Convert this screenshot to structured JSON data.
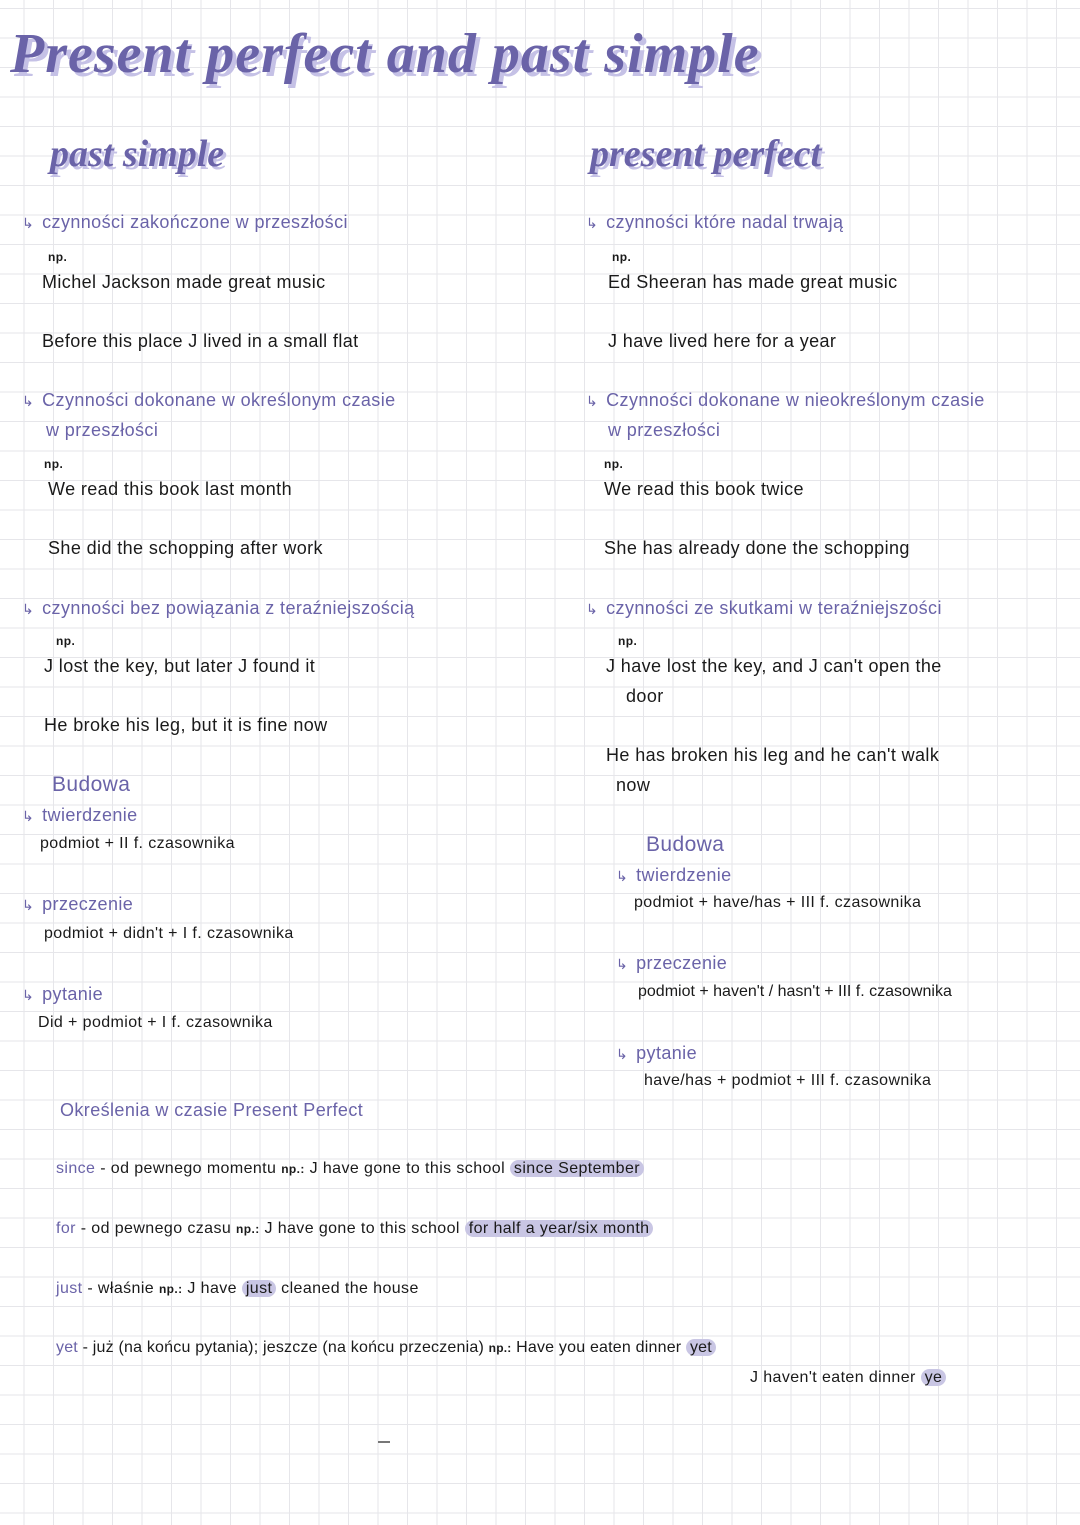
{
  "title": "Present perfect and past simple",
  "colors": {
    "accent": "#6a63a8",
    "shadow": "#c5c1e6",
    "highlight": "#c9c6e4"
  },
  "past_simple": {
    "heading": "past simple",
    "uses": [
      {
        "label": "czynności zakończone w przeszłości",
        "np": "np.",
        "examples": [
          "Michel Jackson made great music",
          "Before this place J lived in a small flat"
        ]
      },
      {
        "label": "Czynności dokonane w określonym czasie",
        "label2": "w przeszłości",
        "np": "np.",
        "examples": [
          "We read this book last month",
          "She did the schopping after work"
        ]
      },
      {
        "label": "czynności bez powiązania z teraźniejszością",
        "np": "np.",
        "examples": [
          "J lost the key, but later J found it",
          "He broke his leg, but it is fine now"
        ]
      }
    ],
    "budowa": {
      "heading": "Budowa",
      "twierdzenie": {
        "label": "twierdzenie",
        "formula": "podmiot + II f. czasownika"
      },
      "przeczenie": {
        "label": "przeczenie",
        "formula": "podmiot + didn't + I f. czasownika"
      },
      "pytanie": {
        "label": "pytanie",
        "formula": "Did + podmiot + I f. czasownika"
      }
    }
  },
  "present_perfect": {
    "heading": "present perfect",
    "uses": [
      {
        "label": "czynności które nadal trwają",
        "np": "np.",
        "examples": [
          "Ed Sheeran has made great music",
          "J have lived here for a year"
        ]
      },
      {
        "label": "Czynności dokonane w nieokreślonym czasie",
        "label2": "w przeszłości",
        "np": "np.",
        "examples": [
          "We read this book twice",
          "She has already done the schopping"
        ]
      },
      {
        "label": "czynności ze skutkami w teraźniejszości",
        "np": "np.",
        "examples": [
          "J have lost the key, and J can't open the",
          "door",
          "He has broken his leg and he can't walk",
          "now"
        ]
      }
    ],
    "budowa": {
      "heading": "Budowa",
      "twierdzenie": {
        "label": "twierdzenie",
        "formula": "podmiot + have/has + III f. czasownika"
      },
      "przeczenie": {
        "label": "przeczenie",
        "formula": "podmiot + haven't / hasn't + III f. czasownika"
      },
      "pytanie": {
        "label": "pytanie",
        "formula": "have/has + podmiot + III f. czasownika"
      }
    }
  },
  "expressions": {
    "heading": "Określenia w czasie Present Perfect",
    "items": [
      {
        "word": "since",
        "meaning": "- od pewnego momentu",
        "np": "np.:",
        "example": "J have gone to this school",
        "highlight": "since September",
        "after": ""
      },
      {
        "word": "for",
        "meaning": "- od pewnego czasu",
        "np": "np.:",
        "example": "J have gone to this school",
        "highlight": "for half a year/six month",
        "after": ""
      },
      {
        "word": "just",
        "meaning": "- właśnie",
        "np": "np.:",
        "example": "J have",
        "highlight": "just",
        "after": "cleaned the house"
      },
      {
        "word": "yet",
        "meaning": "- już (na końcu pytania); jeszcze (na końcu przeczenia)",
        "np": "np.:",
        "example": "Have you eaten dinner",
        "highlight": "yet",
        "after": ""
      }
    ],
    "yet_second": {
      "example": "J haven't eaten dinner",
      "highlight": "ye"
    }
  }
}
